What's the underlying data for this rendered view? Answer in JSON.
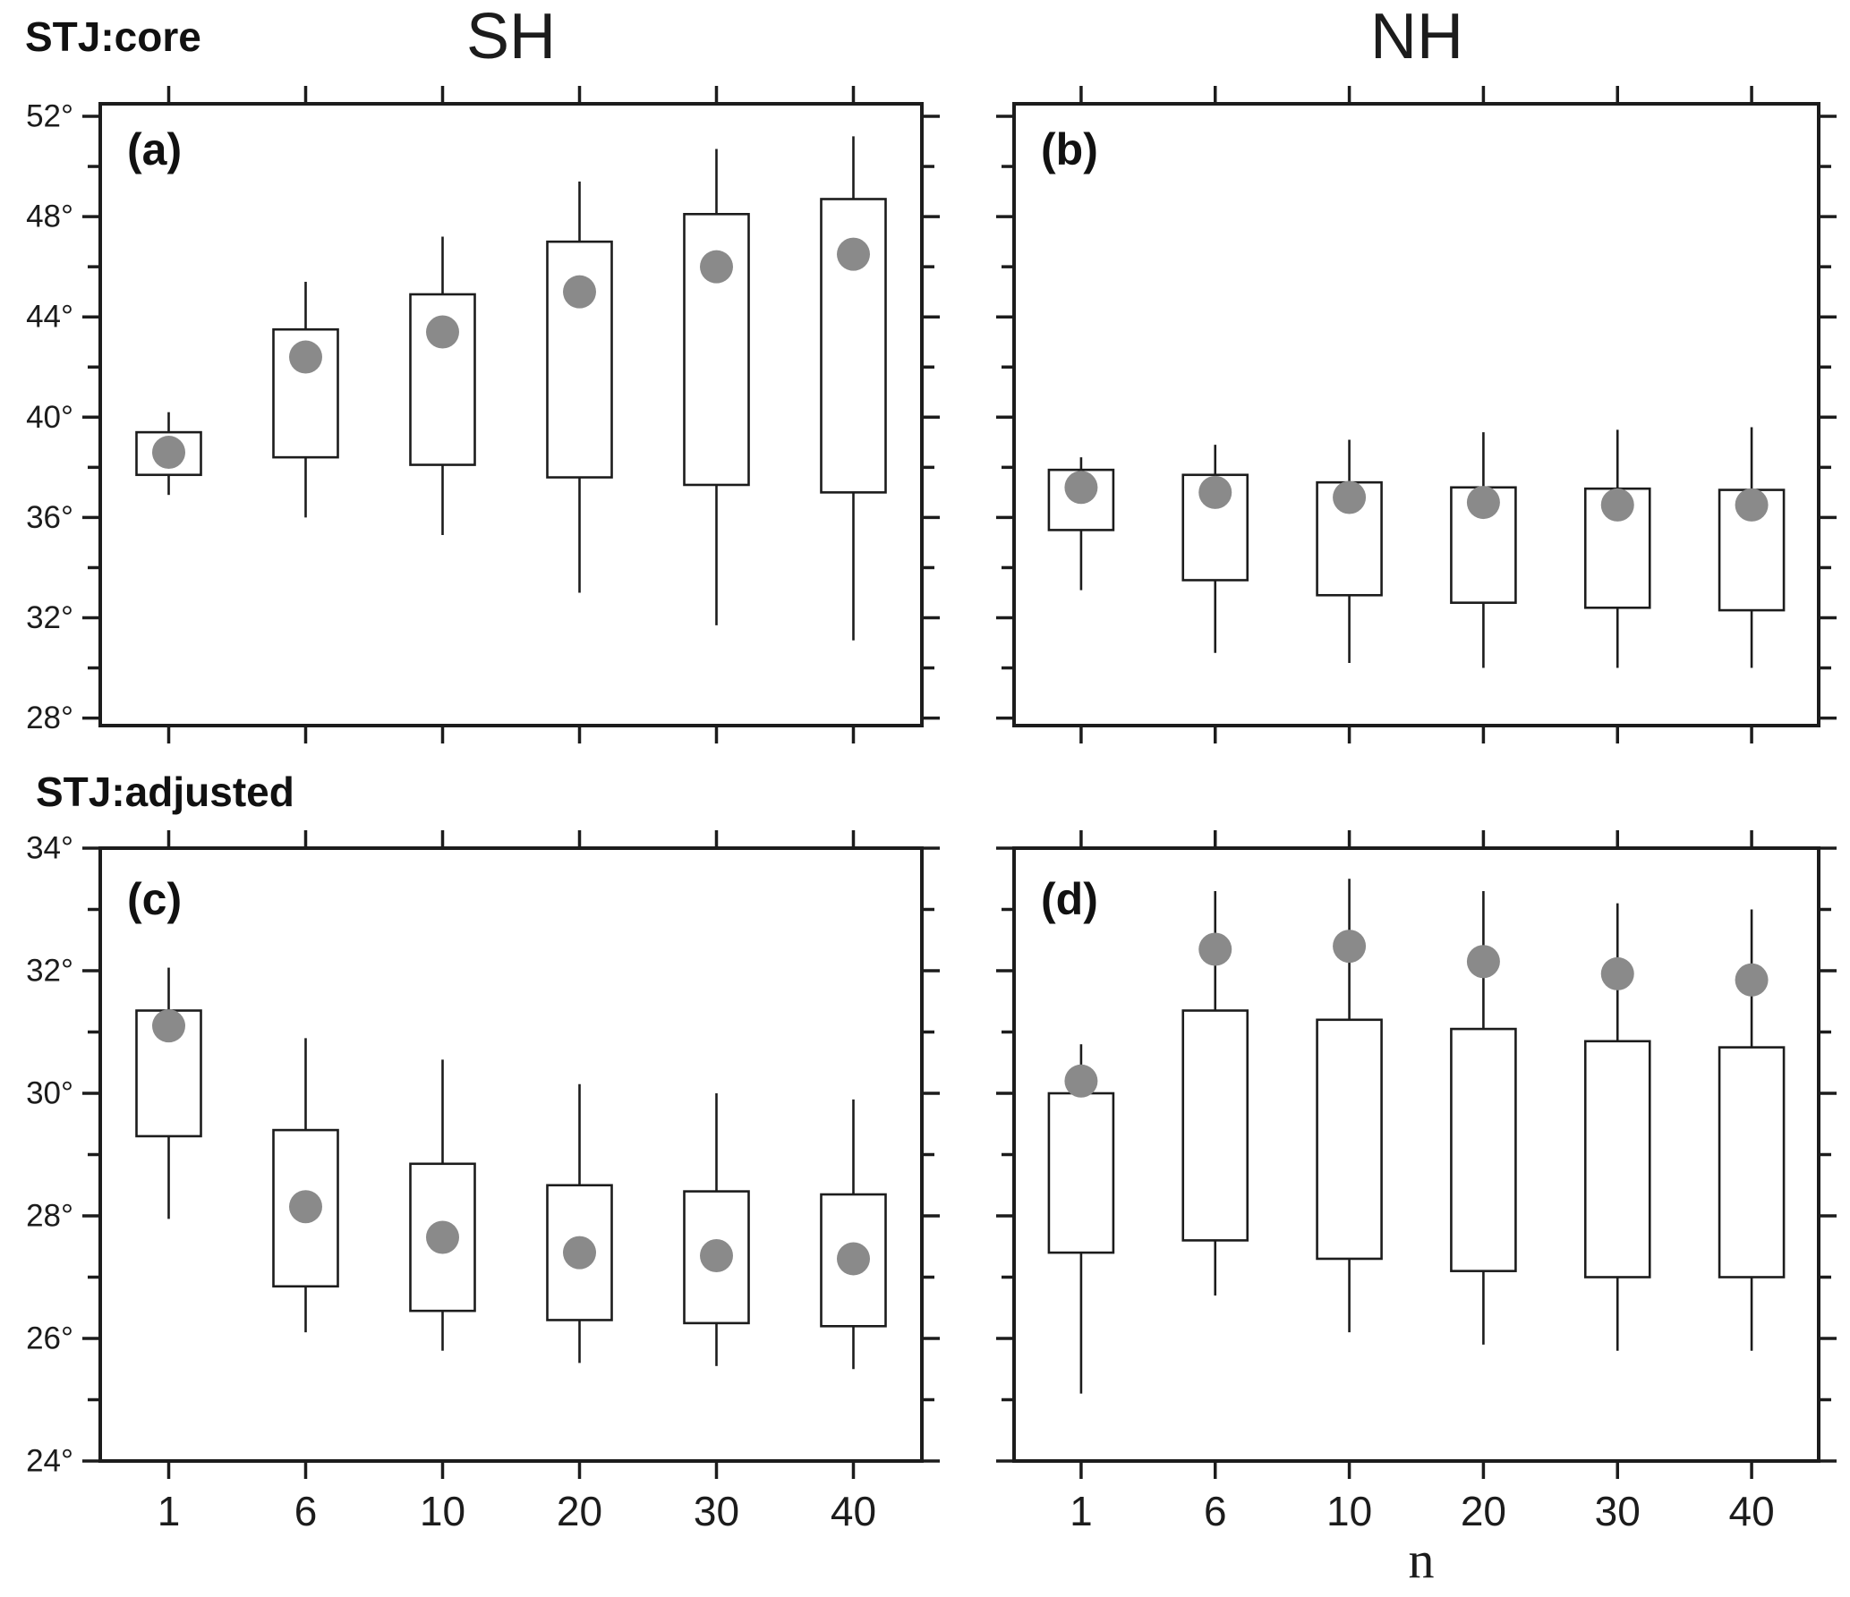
{
  "figure": {
    "col_titles": [
      {
        "text": "SH"
      },
      {
        "text": "NH"
      }
    ],
    "row_labels": [
      {
        "text": "STJ:core"
      },
      {
        "text": "STJ:adjusted"
      }
    ],
    "x_axis_label": "n"
  },
  "colors": {
    "background": "#ffffff",
    "line": "#1c1c1c",
    "box_fill": "#ffffff",
    "mean_dot": "#8a8a8a",
    "text": "#1c1c1c"
  },
  "chart_data": [
    {
      "id": "a",
      "panel_label": "(a)",
      "type": "box",
      "row": "STJ:core",
      "hemisphere": "SH",
      "x_categories": [
        "1",
        "6",
        "10",
        "20",
        "30",
        "40"
      ],
      "show_x_tick_labels": false,
      "ylim": [
        27.7,
        52.5
      ],
      "yticks": {
        "min": 28,
        "max": 52,
        "minor_step": 2,
        "label_step": 4,
        "suffix": "°"
      },
      "grid": false,
      "series": {
        "whisker_low": [
          36.9,
          36.0,
          35.3,
          33.0,
          31.7,
          31.1
        ],
        "q1": [
          37.7,
          38.4,
          38.1,
          37.6,
          37.3,
          37.0
        ],
        "mean": [
          38.6,
          42.4,
          43.4,
          45.0,
          46.0,
          46.5
        ],
        "q3": [
          39.4,
          43.5,
          44.9,
          47.0,
          48.1,
          48.7
        ],
        "whisker_high": [
          40.2,
          45.4,
          47.2,
          49.4,
          50.7,
          51.2
        ]
      }
    },
    {
      "id": "b",
      "panel_label": "(b)",
      "type": "box",
      "row": "STJ:core",
      "hemisphere": "NH",
      "x_categories": [
        "1",
        "6",
        "10",
        "20",
        "30",
        "40"
      ],
      "show_x_tick_labels": false,
      "ylim": [
        27.7,
        52.5
      ],
      "yticks": {
        "min": 28,
        "max": 52,
        "minor_step": 2,
        "label_step": 4,
        "suffix": "°"
      },
      "grid": false,
      "series": {
        "whisker_low": [
          33.1,
          30.6,
          30.2,
          30.0,
          30.0,
          30.0
        ],
        "q1": [
          35.5,
          33.5,
          32.9,
          32.6,
          32.4,
          32.3
        ],
        "mean": [
          37.2,
          37.0,
          36.8,
          36.6,
          36.5,
          36.5
        ],
        "q3": [
          37.9,
          37.7,
          37.4,
          37.2,
          37.15,
          37.1
        ],
        "whisker_high": [
          38.4,
          38.9,
          39.1,
          39.4,
          39.5,
          39.6
        ]
      }
    },
    {
      "id": "c",
      "panel_label": "(c)",
      "type": "box",
      "row": "STJ:adjusted",
      "hemisphere": "SH",
      "x_categories": [
        "1",
        "6",
        "10",
        "20",
        "30",
        "40"
      ],
      "show_x_tick_labels": true,
      "ylim": [
        24,
        34
      ],
      "yticks": {
        "min": 24,
        "max": 34,
        "minor_step": 1,
        "label_step": 2,
        "suffix": "°"
      },
      "grid": false,
      "series": {
        "whisker_low": [
          27.95,
          26.1,
          25.8,
          25.6,
          25.55,
          25.5
        ],
        "q1": [
          29.3,
          26.85,
          26.45,
          26.3,
          26.25,
          26.2
        ],
        "mean": [
          31.1,
          28.15,
          27.65,
          27.4,
          27.35,
          27.3
        ],
        "q3": [
          31.35,
          29.4,
          28.85,
          28.5,
          28.4,
          28.35
        ],
        "whisker_high": [
          32.05,
          30.9,
          30.55,
          30.15,
          30.0,
          29.9
        ]
      }
    },
    {
      "id": "d",
      "panel_label": "(d)",
      "type": "box",
      "row": "STJ:adjusted",
      "hemisphere": "NH",
      "x_categories": [
        "1",
        "6",
        "10",
        "20",
        "30",
        "40"
      ],
      "show_x_tick_labels": true,
      "ylim": [
        24,
        34
      ],
      "yticks": {
        "min": 24,
        "max": 34,
        "minor_step": 1,
        "label_step": 2,
        "suffix": "°"
      },
      "grid": false,
      "series": {
        "whisker_low": [
          25.1,
          26.7,
          26.1,
          25.9,
          25.8,
          25.8
        ],
        "q1": [
          27.4,
          27.6,
          27.3,
          27.1,
          27.0,
          27.0
        ],
        "mean": [
          30.2,
          32.35,
          32.4,
          32.15,
          31.95,
          31.85
        ],
        "q3": [
          30.0,
          31.35,
          31.2,
          31.05,
          30.85,
          30.75
        ],
        "whisker_high": [
          30.8,
          33.3,
          33.5,
          33.3,
          33.1,
          33.0
        ]
      }
    }
  ]
}
